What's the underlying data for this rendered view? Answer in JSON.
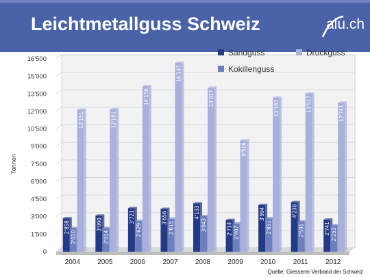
{
  "header": {
    "title": "Leichtmetallguss Schweiz",
    "logo_text": "alu.ch"
  },
  "footer": {
    "source": "Quelle: Giesserei-Verband der Schweiz"
  },
  "chart_data": {
    "type": "bar",
    "title": "",
    "xlabel": "",
    "ylabel": "Tonnen",
    "ylim": [
      0,
      16500
    ],
    "yticks": [
      "0",
      "1'500",
      "3'000",
      "4'500",
      "6'000",
      "7'500",
      "9'000",
      "10'500",
      "12'000",
      "13'500",
      "15'000",
      "16'500"
    ],
    "categories": [
      "2004",
      "2005",
      "2006",
      "2007",
      "2008",
      "2009",
      "2010",
      "2011",
      "2012"
    ],
    "legend_position": "top-right",
    "grid": true,
    "series": [
      {
        "name": "Sandguss",
        "color": "#243a85",
        "values": [
          2858,
          3090,
          3721,
          3656,
          4133,
          2714,
          3994,
          4238,
          2741
        ],
        "labels": [
          "2'858",
          "3'090",
          "3'721",
          "3'656",
          "4'133",
          "2'714",
          "3'994",
          "4'238",
          "2'741"
        ]
      },
      {
        "name": "Kokillenguss",
        "color": "#6d7fbf",
        "values": [
          2010,
          2014,
          2629,
          2815,
          3043,
          2407,
          2851,
          2591,
          2253
        ],
        "labels": [
          "2'010",
          "2'014",
          "2'629",
          "2'815",
          "3'043",
          "2'407",
          "2'851",
          "2'591",
          "2'253"
        ]
      },
      {
        "name": "Druckguss",
        "color": "#a9b0dc",
        "values": [
          12151,
          12181,
          14156,
          16147,
          14017,
          9516,
          13183,
          13517,
          12741
        ],
        "labels": [
          "12'151",
          "12'181",
          "14'156",
          "16'147",
          "14'017",
          "9'516",
          "13'183",
          "13'517",
          "12'741"
        ]
      }
    ]
  }
}
